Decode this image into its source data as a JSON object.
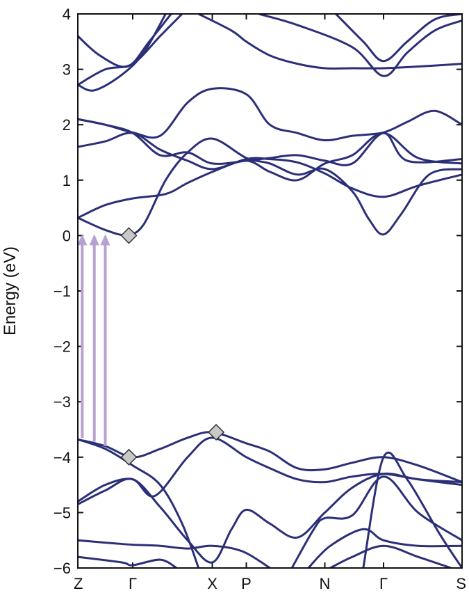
{
  "chart_data": {
    "type": "line",
    "title": "",
    "xlabel": "",
    "ylabel": "Energy (eV)",
    "ylim": [
      -6,
      4
    ],
    "xlim": [
      0,
      7
    ],
    "yticks": [
      "4",
      "3",
      "2",
      "1",
      "0",
      "−1",
      "−2",
      "−3",
      "−4",
      "−5",
      "−6"
    ],
    "yticks_values": [
      4,
      3,
      2,
      1,
      0,
      -1,
      -2,
      -3,
      -4,
      -5,
      -6
    ],
    "xticks": [
      {
        "label": "Z",
        "x": 0
      },
      {
        "label": "Γ",
        "x": 1
      },
      {
        "label": "X",
        "x": 2.45
      },
      {
        "label": "P",
        "x": 3.07
      },
      {
        "label": "N",
        "x": 4.5
      },
      {
        "label": "Γ",
        "x": 5.57
      },
      {
        "label": "S",
        "x": 7
      }
    ],
    "grid": false,
    "line_color": "#2b2f78",
    "arrow_color": "#b7a0d2",
    "marker_color": "#c8c8c8",
    "series": [
      {
        "values": [
          [
            0,
            0.32
          ],
          [
            0.5,
            0.1
          ],
          [
            0.9,
            0.01
          ],
          [
            1.2,
            0.2
          ],
          [
            1.6,
            1.0
          ],
          [
            2.0,
            1.5
          ],
          [
            2.45,
            1.75
          ],
          [
            3.07,
            1.4
          ],
          [
            3.5,
            1.3
          ],
          [
            4.0,
            1.1
          ],
          [
            4.5,
            1.2
          ],
          [
            5.0,
            0.8
          ],
          [
            5.3,
            0.3
          ],
          [
            5.57,
            0.02
          ],
          [
            5.9,
            0.4
          ],
          [
            6.4,
            1.1
          ],
          [
            7,
            1.2
          ]
        ]
      },
      {
        "values": [
          [
            0,
            0.32
          ],
          [
            0.5,
            0.55
          ],
          [
            1.0,
            0.67
          ],
          [
            1.6,
            0.75
          ],
          [
            2.0,
            0.95
          ],
          [
            2.45,
            1.15
          ],
          [
            3.07,
            1.38
          ],
          [
            3.5,
            1.38
          ],
          [
            4.0,
            1.32
          ],
          [
            4.5,
            1.12
          ],
          [
            5.0,
            0.85
          ],
          [
            5.57,
            0.7
          ],
          [
            6.2,
            0.9
          ],
          [
            7,
            1.1
          ]
        ]
      },
      {
        "values": [
          [
            0,
            1.6
          ],
          [
            0.5,
            1.7
          ],
          [
            1.0,
            1.85
          ],
          [
            1.5,
            1.55
          ],
          [
            2.0,
            1.35
          ],
          [
            2.45,
            1.2
          ],
          [
            3.07,
            1.35
          ],
          [
            3.5,
            1.15
          ],
          [
            4.0,
            1.0
          ],
          [
            4.5,
            1.3
          ],
          [
            5.0,
            1.45
          ],
          [
            5.57,
            1.85
          ],
          [
            6.2,
            1.4
          ],
          [
            7,
            1.3
          ]
        ]
      },
      {
        "values": [
          [
            0,
            2.1
          ],
          [
            0.5,
            2.0
          ],
          [
            1.0,
            1.85
          ],
          [
            1.5,
            1.45
          ],
          [
            2.0,
            1.5
          ],
          [
            2.45,
            1.3
          ],
          [
            3.07,
            1.35
          ],
          [
            3.5,
            1.4
          ],
          [
            4.0,
            1.45
          ],
          [
            4.5,
            1.35
          ],
          [
            5.0,
            1.3
          ],
          [
            5.57,
            1.85
          ],
          [
            6.0,
            1.35
          ],
          [
            7,
            1.38
          ]
        ]
      },
      {
        "values": [
          [
            0,
            2.1
          ],
          [
            0.5,
            2.0
          ],
          [
            1.0,
            1.86
          ],
          [
            1.5,
            1.8
          ],
          [
            2.0,
            2.4
          ],
          [
            2.45,
            2.65
          ],
          [
            3.07,
            2.55
          ],
          [
            3.5,
            2.0
          ],
          [
            4.0,
            1.85
          ],
          [
            4.5,
            1.72
          ],
          [
            5.0,
            1.8
          ],
          [
            5.57,
            1.86
          ],
          [
            6.0,
            2.05
          ],
          [
            6.5,
            2.25
          ],
          [
            7,
            2.0
          ]
        ]
      },
      {
        "values": [
          [
            0,
            2.72
          ],
          [
            0.3,
            2.62
          ],
          [
            0.8,
            2.9
          ],
          [
            1.2,
            3.3
          ],
          [
            1.6,
            4.0
          ]
        ]
      },
      {
        "values": [
          [
            0,
            3.6
          ],
          [
            0.4,
            3.25
          ],
          [
            0.9,
            3.05
          ],
          [
            1.3,
            3.5
          ],
          [
            1.7,
            4.0
          ]
        ]
      },
      {
        "values": [
          [
            0,
            2.72
          ],
          [
            0.5,
            3.0
          ],
          [
            1.0,
            3.1
          ],
          [
            1.5,
            3.6
          ],
          [
            1.9,
            4.0
          ]
        ]
      },
      {
        "values": [
          [
            2.2,
            4.0
          ],
          [
            2.8,
            3.7
          ],
          [
            3.07,
            3.5
          ],
          [
            3.5,
            3.25
          ],
          [
            4.0,
            3.1
          ],
          [
            4.5,
            3.02
          ],
          [
            5.0,
            3.02
          ],
          [
            5.57,
            3.02
          ],
          [
            6.2,
            3.05
          ],
          [
            7,
            3.1
          ]
        ]
      },
      {
        "values": [
          [
            3.3,
            4.0
          ],
          [
            4.0,
            3.8
          ],
          [
            5.0,
            3.4
          ],
          [
            5.57,
            2.88
          ],
          [
            6.0,
            3.3
          ],
          [
            6.5,
            3.7
          ],
          [
            7,
            3.88
          ]
        ]
      },
      {
        "values": [
          [
            4.7,
            4.0
          ],
          [
            5.2,
            3.5
          ],
          [
            5.57,
            3.15
          ],
          [
            6.0,
            3.5
          ],
          [
            6.5,
            3.9
          ],
          [
            7,
            4.0
          ]
        ]
      },
      {
        "values": [
          [
            0,
            -3.68
          ],
          [
            0.5,
            -3.8
          ],
          [
            1.0,
            -4.0
          ],
          [
            1.5,
            -3.85
          ],
          [
            2.0,
            -3.65
          ],
          [
            2.45,
            -3.55
          ],
          [
            3.07,
            -3.75
          ],
          [
            3.5,
            -3.9
          ],
          [
            4.0,
            -4.2
          ],
          [
            4.5,
            -4.22
          ],
          [
            5.0,
            -4.1
          ],
          [
            5.57,
            -4.0
          ],
          [
            6.2,
            -4.15
          ],
          [
            7,
            -4.45
          ]
        ]
      },
      {
        "values": [
          [
            0,
            -3.68
          ],
          [
            0.5,
            -3.85
          ],
          [
            1.0,
            -4.15
          ],
          [
            1.5,
            -4.5
          ],
          [
            1.9,
            -5.2
          ],
          [
            2.2,
            -6.0
          ]
        ]
      },
      {
        "values": [
          [
            0,
            -4.85
          ],
          [
            0.5,
            -4.6
          ],
          [
            1.0,
            -4.4
          ],
          [
            1.5,
            -4.9
          ],
          [
            2.0,
            -5.5
          ],
          [
            2.45,
            -5.9
          ],
          [
            2.8,
            -5.3
          ],
          [
            3.07,
            -4.95
          ],
          [
            3.5,
            -5.2
          ],
          [
            4.0,
            -5.45
          ],
          [
            4.5,
            -5.0
          ],
          [
            5.0,
            -4.55
          ],
          [
            5.57,
            -4.3
          ],
          [
            6.2,
            -4.4
          ],
          [
            7,
            -4.45
          ]
        ]
      },
      {
        "values": [
          [
            0,
            -4.8
          ],
          [
            0.5,
            -4.5
          ],
          [
            1.0,
            -4.4
          ],
          [
            1.4,
            -4.7
          ],
          [
            2.0,
            -4.0
          ],
          [
            2.45,
            -3.65
          ],
          [
            3.07,
            -4.0
          ],
          [
            3.5,
            -4.2
          ],
          [
            4.0,
            -4.4
          ],
          [
            4.5,
            -4.45
          ],
          [
            5.0,
            -4.35
          ],
          [
            5.57,
            -4.3
          ],
          [
            6.2,
            -4.4
          ],
          [
            7,
            -4.5
          ]
        ]
      },
      {
        "values": [
          [
            0,
            -5.5
          ],
          [
            0.6,
            -5.55
          ],
          [
            1.0,
            -5.58
          ],
          [
            1.5,
            -5.6
          ],
          [
            2.0,
            -5.65
          ],
          [
            2.45,
            -5.6
          ],
          [
            3.0,
            -5.7
          ],
          [
            3.5,
            -6.0
          ]
        ]
      },
      {
        "values": [
          [
            0,
            -5.8
          ],
          [
            0.8,
            -5.9
          ],
          [
            1.0,
            -5.95
          ],
          [
            1.5,
            -5.85
          ],
          [
            1.8,
            -6.0
          ]
        ]
      },
      {
        "values": [
          [
            3.9,
            -6.0
          ],
          [
            4.3,
            -5.3
          ],
          [
            4.5,
            -5.1
          ],
          [
            5.0,
            -5.05
          ],
          [
            5.57,
            -4.35
          ],
          [
            6.2,
            -5.0
          ],
          [
            7,
            -5.5
          ]
        ]
      },
      {
        "values": [
          [
            4.2,
            -6.0
          ],
          [
            4.6,
            -5.6
          ],
          [
            5.2,
            -5.3
          ],
          [
            5.57,
            -5.5
          ],
          [
            6.2,
            -5.6
          ],
          [
            7,
            -5.6
          ]
        ]
      },
      {
        "values": [
          [
            4.6,
            -6.0
          ],
          [
            5.0,
            -5.8
          ],
          [
            5.57,
            -5.6
          ],
          [
            6.2,
            -5.8
          ],
          [
            6.8,
            -6.0
          ]
        ]
      },
      {
        "values": [
          [
            5.2,
            -6.0
          ],
          [
            5.57,
            -4.0
          ],
          [
            6.0,
            -4.4
          ],
          [
            6.6,
            -5.4
          ],
          [
            7,
            -6.0
          ]
        ]
      }
    ],
    "arrows": [
      {
        "x": 0.08,
        "from": -3.65,
        "to": 0.0
      },
      {
        "x": 0.3,
        "from": -3.72,
        "to": 0.0
      },
      {
        "x": 0.5,
        "from": -3.8,
        "to": 0.0
      }
    ],
    "markers": [
      {
        "x": 0.93,
        "y": 0.0
      },
      {
        "x": 0.93,
        "y": -4.0
      },
      {
        "x": 2.52,
        "y": -3.55
      }
    ]
  }
}
